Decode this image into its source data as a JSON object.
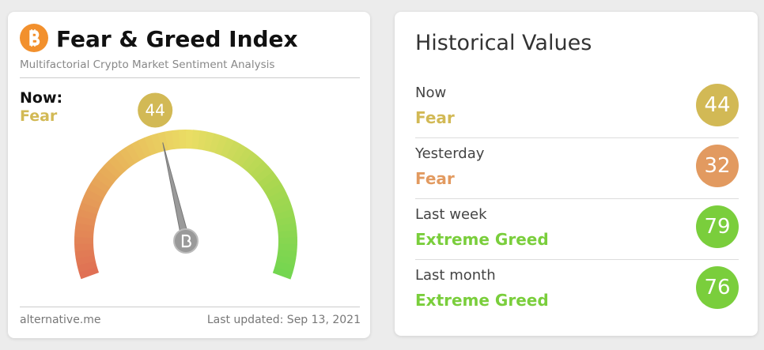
{
  "gauge": {
    "title": "Fear & Greed Index",
    "subtitle": "Multifactorial Crypto Market Sentiment Analysis",
    "now_label": "Now:",
    "classification": "Fear",
    "value": 44,
    "color": "#d2b955",
    "source": "alternative.me",
    "updated": "Last updated: Sep 13, 2021"
  },
  "historical": {
    "title": "Historical Values",
    "rows": [
      {
        "label": "Now",
        "classification": "Fear",
        "value": 44,
        "color": "#d2b955"
      },
      {
        "label": "Yesterday",
        "classification": "Fear",
        "value": 32,
        "color": "#e29a60"
      },
      {
        "label": "Last week",
        "classification": "Extreme Greed",
        "value": 79,
        "color": "#7ace3c"
      },
      {
        "label": "Last month",
        "classification": "Extreme Greed",
        "value": 76,
        "color": "#7ace3c"
      }
    ]
  }
}
